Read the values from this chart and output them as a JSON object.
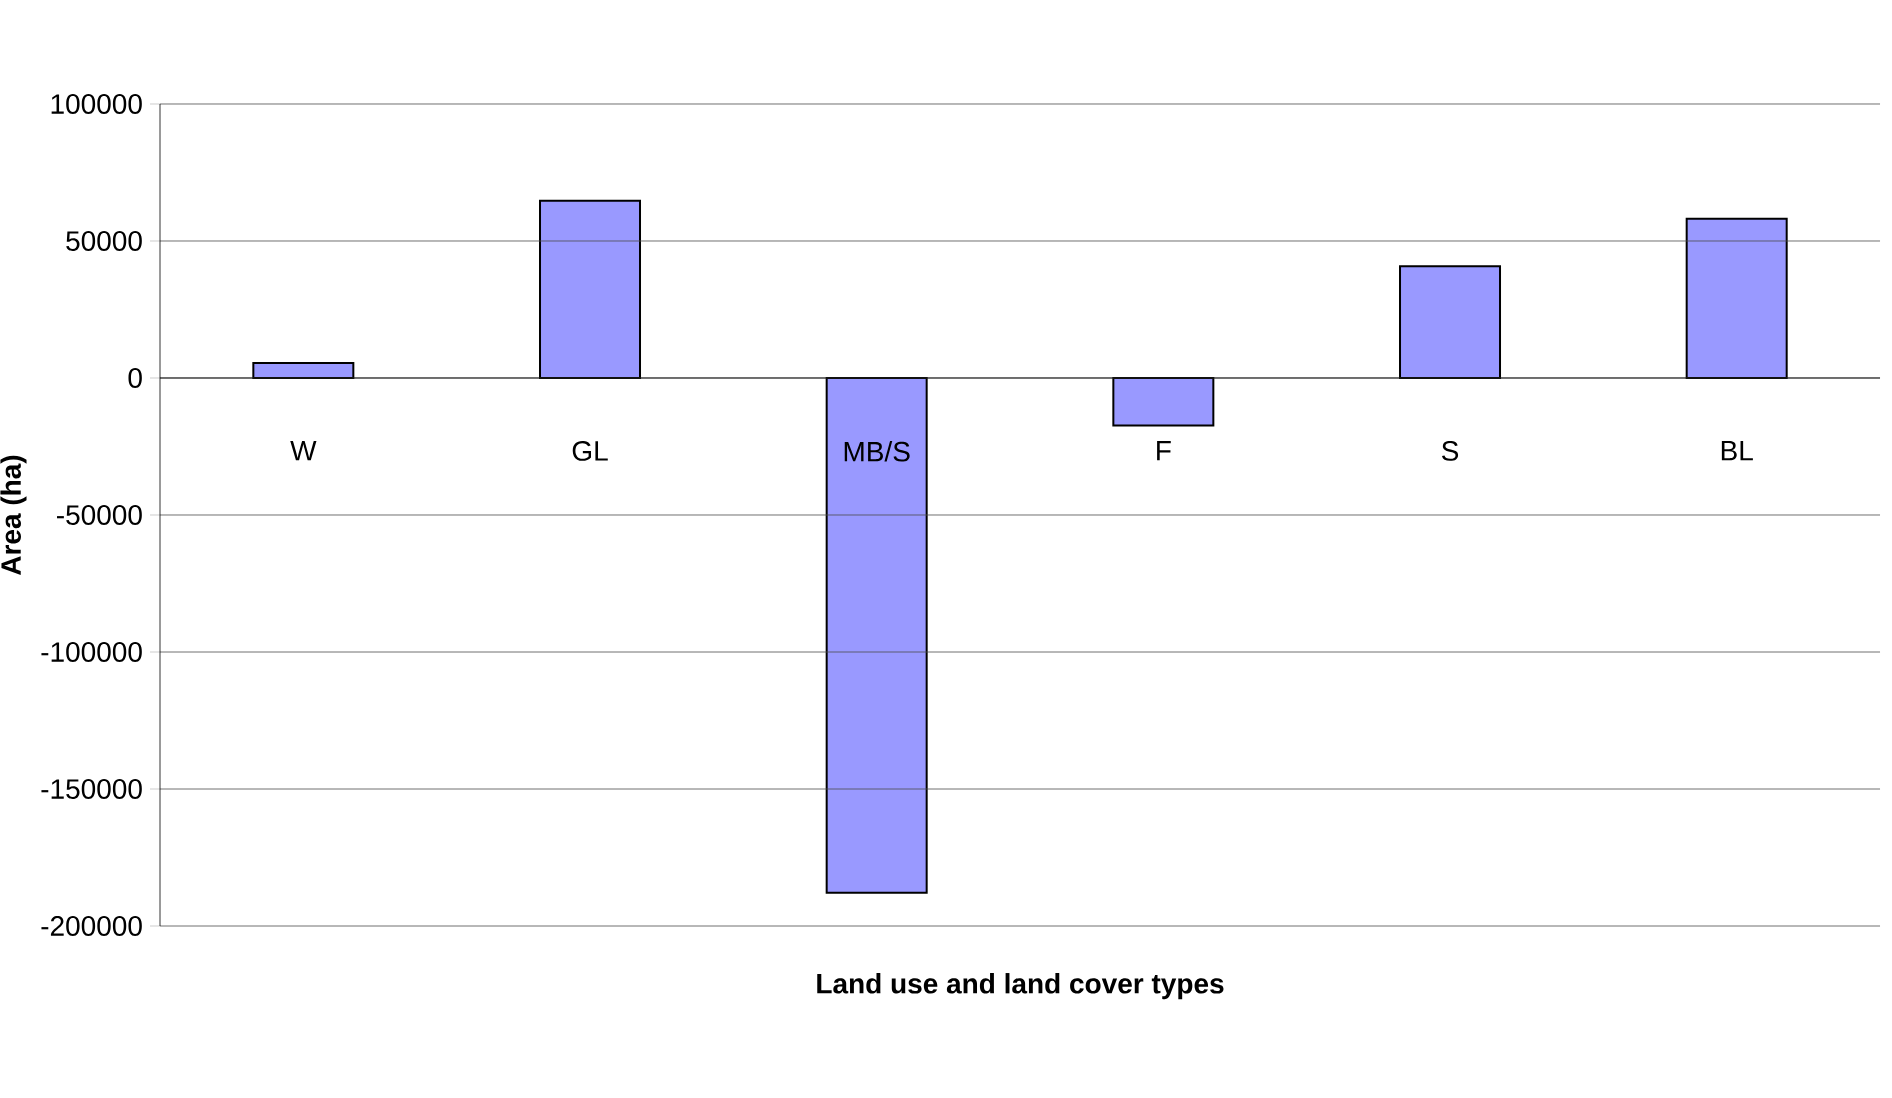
{
  "chart_data": {
    "type": "bar",
    "xlabel": "Land use and land cover types",
    "ylabel": "Area (ha)",
    "categories": [
      "W",
      "GL",
      "MB/S",
      "F",
      "S",
      "BL"
    ],
    "values": [
      5500,
      64700,
      -187900,
      -17300,
      40800,
      58100
    ],
    "color": "#9999ff",
    "ylim": [
      -200000,
      100000
    ],
    "yticks": [
      -200000,
      -150000,
      -100000,
      -50000,
      0,
      50000,
      100000
    ],
    "grid": "y"
  }
}
